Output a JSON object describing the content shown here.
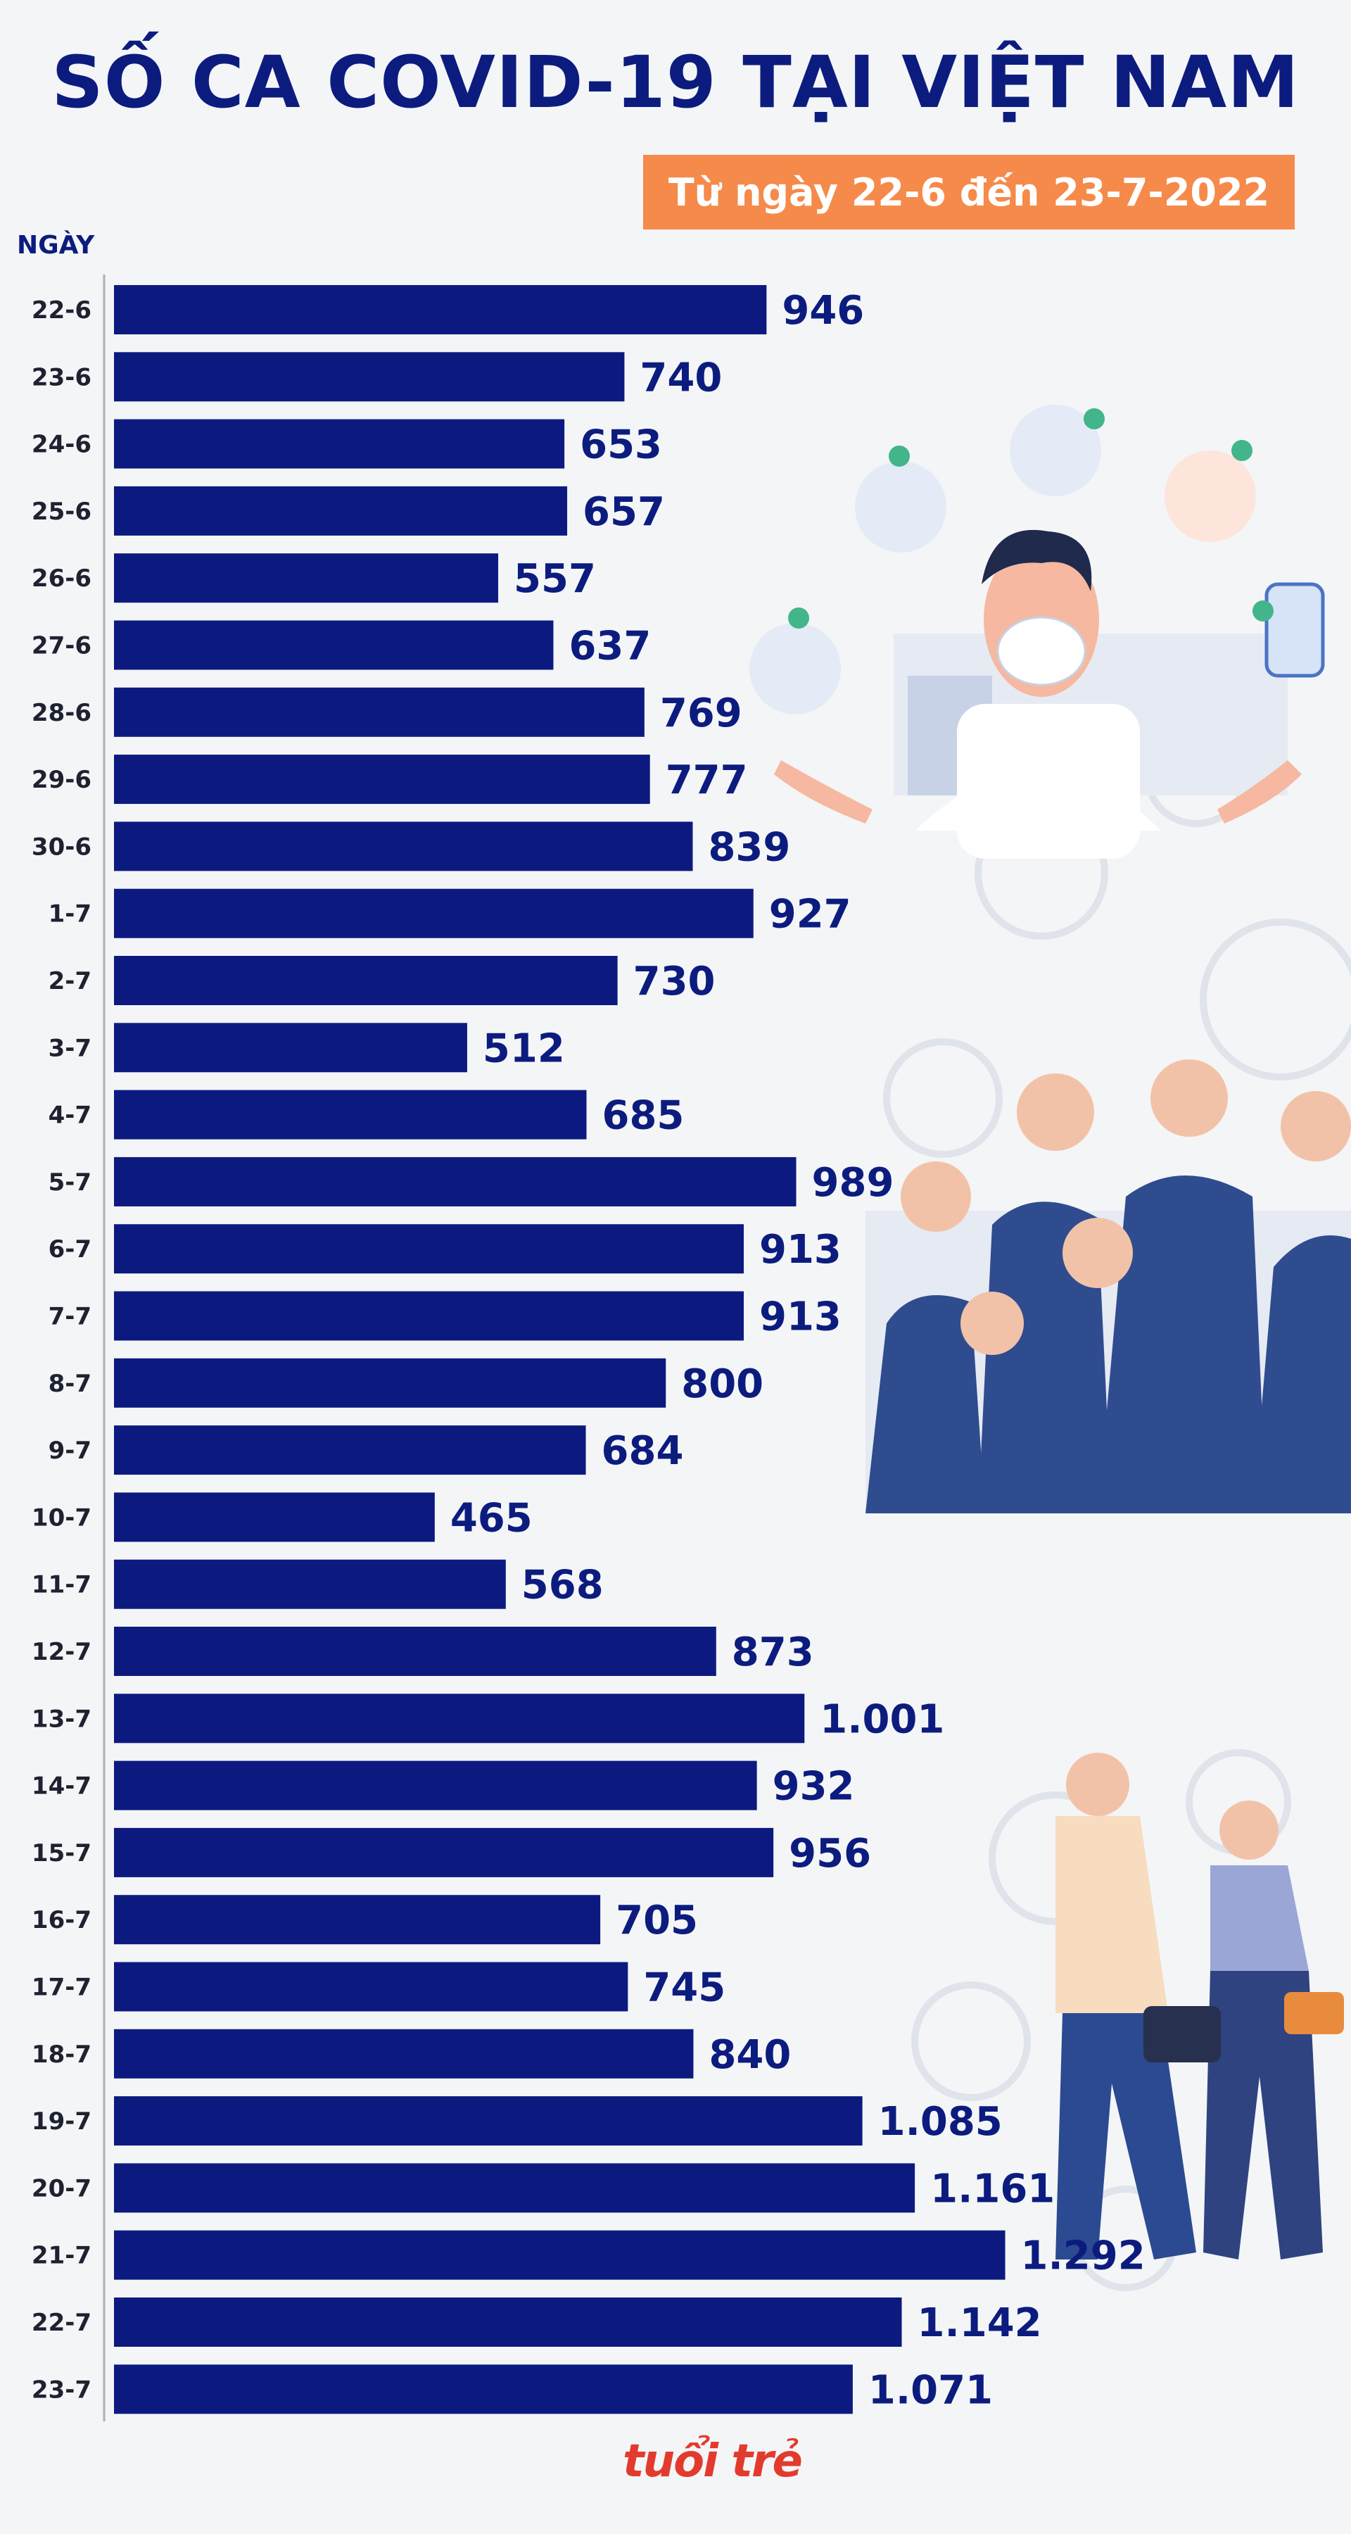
{
  "header": {
    "title": "SỐ CA COVID-19 TẠI VIỆT NAM",
    "subtitle": "Từ ngày 22-6 đến 23-7-2022",
    "subtitle_bg": "#f58a4a",
    "title_color": "#0c1c7e"
  },
  "chart_data": {
    "type": "bar",
    "orientation": "horizontal",
    "title": "SỐ CA COVID-19 TẠI VIỆT NAM",
    "subtitle": "Từ ngày 22-6 đến 23-7-2022",
    "xlabel": "",
    "ylabel": "NGÀY",
    "bar_color": "#0c1a80",
    "grid": false,
    "legend": "none",
    "categories": [
      "22-6",
      "23-6",
      "24-6",
      "25-6",
      "26-6",
      "27-6",
      "28-6",
      "29-6",
      "30-6",
      "1-7",
      "2-7",
      "3-7",
      "4-7",
      "5-7",
      "6-7",
      "7-7",
      "8-7",
      "9-7",
      "10-7",
      "11-7",
      "12-7",
      "13-7",
      "14-7",
      "15-7",
      "16-7",
      "17-7",
      "18-7",
      "19-7",
      "20-7",
      "21-7",
      "22-7",
      "23-7"
    ],
    "values": [
      946,
      740,
      653,
      657,
      557,
      637,
      769,
      777,
      839,
      927,
      730,
      512,
      685,
      989,
      913,
      913,
      800,
      684,
      465,
      568,
      873,
      1001,
      932,
      956,
      705,
      745,
      840,
      1085,
      1161,
      1292,
      1142,
      1071
    ],
    "value_labels": [
      "946",
      "740",
      "653",
      "657",
      "557",
      "637",
      "769",
      "777",
      "839",
      "927",
      "730",
      "512",
      "685",
      "989",
      "913",
      "913",
      "800",
      "684",
      "465",
      "568",
      "873",
      "1.001",
      "932",
      "956",
      "705",
      "745",
      "840",
      "1.085",
      "1.161",
      "1.292",
      "1.142",
      "1.071"
    ]
  },
  "footer": {
    "logo_text": "tuổi trẻ",
    "logo_color": "#e23b2e"
  }
}
